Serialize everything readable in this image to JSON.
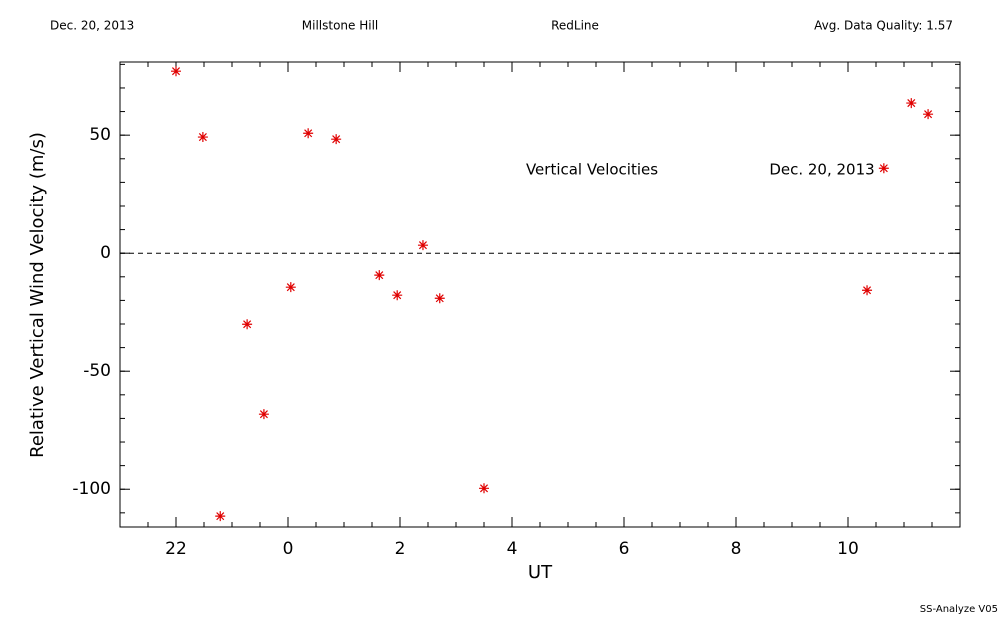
{
  "header": {
    "date": "Dec. 20, 2013",
    "site": "Millstone Hill",
    "line": "RedLine",
    "quality": "Avg. Data Quality: 1.57"
  },
  "footer": "SS-Analyze V05",
  "chart_data": {
    "type": "scatter",
    "xlabel": "UT",
    "ylabel": "Relative Vertical Wind Velocity (m/s)",
    "annotations": [
      "Vertical Velocities",
      "Dec. 20, 2013"
    ],
    "color": "#e00000",
    "x": [
      -2.0,
      -1.52,
      -1.21,
      -0.73,
      -0.43,
      0.05,
      0.36,
      0.86,
      1.63,
      1.95,
      2.41,
      2.71,
      3.5,
      10.34,
      10.64,
      11.13,
      11.43
    ],
    "values": [
      77.1,
      49.2,
      -111.4,
      -30.1,
      -68.2,
      -14.4,
      50.8,
      48.3,
      -9.3,
      -17.8,
      3.4,
      -19.1,
      -99.6,
      -15.7,
      36.0,
      63.6,
      58.9
    ],
    "xlim": [
      -3,
      12
    ],
    "xticks": [
      {
        "value": -2,
        "label": "22"
      },
      0,
      2,
      4,
      6,
      8,
      10
    ],
    "xminor": 0.5,
    "ylim": [
      -116,
      81
    ],
    "yticks": [
      -100,
      -50,
      0,
      50
    ],
    "yminor": 10,
    "zero_line": true
  }
}
